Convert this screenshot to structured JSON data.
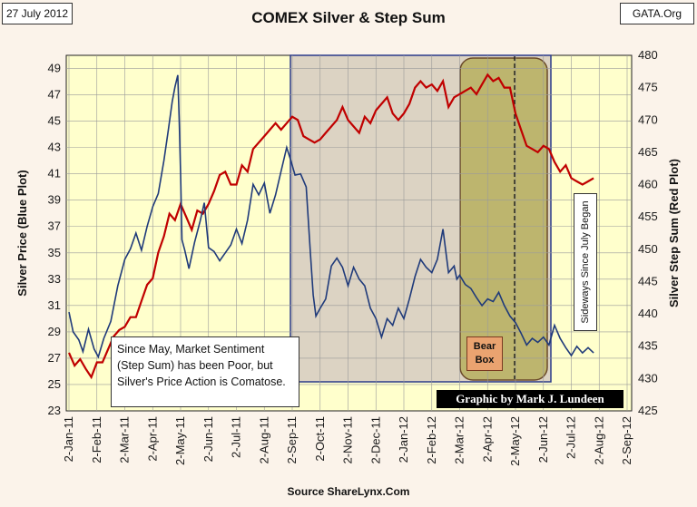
{
  "chart_data": {
    "type": "line",
    "title": "COMEX Silver & Step Sum",
    "date_label": "27 July 2012",
    "source_label": "GATA.Org",
    "footer": "Source ShareLynx.Com",
    "credit": "Graphic by Mark J. Lundeen",
    "ylabel_left": "Silver Price (Blue Plot)",
    "ylabel_right": "Silver Step Sum (Red Plot)",
    "ylim_left": [
      23,
      50
    ],
    "ylim_right": [
      425,
      480
    ],
    "yticks_left": [
      "49",
      "47",
      "45",
      "43",
      "41",
      "39",
      "37",
      "35",
      "33",
      "31",
      "29",
      "27",
      "25",
      "23"
    ],
    "yticks_right": [
      "480",
      "475",
      "470",
      "465",
      "460",
      "455",
      "450",
      "445",
      "440",
      "435",
      "430",
      "425"
    ],
    "xticks": [
      "2-Jan-11",
      "2-Feb-11",
      "2-Mar-11",
      "2-Apr-11",
      "2-May-11",
      "2-Jun-11",
      "2-Jul-11",
      "2-Aug-11",
      "2-Sep-11",
      "2-Oct-11",
      "2-Nov-11",
      "2-Dec-11",
      "2-Jan-12",
      "2-Feb-12",
      "2-Mar-12",
      "2-Apr-12",
      "2-May-12",
      "2-Jun-12",
      "2-Jul-12",
      "2-Aug-12",
      "2-Sep-12"
    ],
    "x_index_note": "x values are months since 2-Jan-11",
    "series": [
      {
        "name": "Silver Price (Blue Plot)",
        "axis": "left",
        "color": "#1f3a7a",
        "x": [
          0,
          0.15,
          0.35,
          0.5,
          0.7,
          0.9,
          1.05,
          1.25,
          1.5,
          1.75,
          2.0,
          2.2,
          2.4,
          2.6,
          2.8,
          3.0,
          3.2,
          3.4,
          3.55,
          3.7,
          3.8,
          3.9,
          3.95,
          4.0,
          4.05,
          4.15,
          4.3,
          4.5,
          4.7,
          4.85,
          5.0,
          5.2,
          5.4,
          5.6,
          5.8,
          6.0,
          6.2,
          6.4,
          6.6,
          6.8,
          7.0,
          7.2,
          7.4,
          7.6,
          7.8,
          7.95,
          8.1,
          8.3,
          8.5,
          8.65,
          8.75,
          8.85,
          9.0,
          9.2,
          9.4,
          9.6,
          9.8,
          10.0,
          10.2,
          10.4,
          10.6,
          10.8,
          11.0,
          11.2,
          11.4,
          11.6,
          11.8,
          12.0,
          12.2,
          12.4,
          12.6,
          12.8,
          13.0,
          13.2,
          13.4,
          13.6,
          13.8,
          13.9,
          14.0,
          14.2,
          14.4,
          14.6,
          14.8,
          15.0,
          15.2,
          15.4,
          15.6,
          15.8,
          16.0,
          16.2,
          16.4,
          16.6,
          16.8,
          17.0,
          17.2,
          17.4,
          17.6,
          17.8,
          18.0,
          18.2,
          18.4,
          18.6,
          18.8
        ],
        "values": [
          30.5,
          29.0,
          28.4,
          27.5,
          29.2,
          27.7,
          27.1,
          28.5,
          29.8,
          32.5,
          34.5,
          35.3,
          36.5,
          35.2,
          37.0,
          38.5,
          39.5,
          42.0,
          44.2,
          46.5,
          47.6,
          48.5,
          45.0,
          41.0,
          36.0,
          35.2,
          33.8,
          35.8,
          37.4,
          38.8,
          35.4,
          35.1,
          34.4,
          35.0,
          35.6,
          36.8,
          35.7,
          37.5,
          40.2,
          39.4,
          40.3,
          38.0,
          39.4,
          41.2,
          43.0,
          42.0,
          40.9,
          41.0,
          40.0,
          35.0,
          31.8,
          30.2,
          30.8,
          31.5,
          34.0,
          34.6,
          33.9,
          32.5,
          33.9,
          33.0,
          32.5,
          30.8,
          30.0,
          28.6,
          30.0,
          29.5,
          30.8,
          30.0,
          31.5,
          33.2,
          34.5,
          33.9,
          33.5,
          34.5,
          36.8,
          33.5,
          34.0,
          33.0,
          33.3,
          32.6,
          32.3,
          31.6,
          31.0,
          31.5,
          31.3,
          32.0,
          31.0,
          30.2,
          29.7,
          28.9,
          28.0,
          28.5,
          28.2,
          28.6,
          28.0,
          29.5,
          28.5,
          27.8,
          27.2,
          27.9,
          27.4,
          27.8,
          27.4
        ]
      },
      {
        "name": "Silver Step Sum (Red Plot)",
        "axis": "right",
        "color": "#c00000",
        "x": [
          0,
          0.2,
          0.4,
          0.6,
          0.8,
          1.0,
          1.2,
          1.4,
          1.6,
          1.8,
          2.0,
          2.2,
          2.4,
          2.6,
          2.8,
          3.0,
          3.2,
          3.4,
          3.6,
          3.8,
          4.0,
          4.2,
          4.4,
          4.6,
          4.8,
          5.0,
          5.2,
          5.4,
          5.6,
          5.8,
          6.0,
          6.2,
          6.4,
          6.6,
          6.8,
          7.0,
          7.2,
          7.4,
          7.6,
          7.8,
          8.0,
          8.2,
          8.4,
          8.6,
          8.8,
          9.0,
          9.2,
          9.4,
          9.6,
          9.8,
          10.0,
          10.2,
          10.4,
          10.6,
          10.8,
          11.0,
          11.2,
          11.4,
          11.6,
          11.8,
          12.0,
          12.2,
          12.4,
          12.6,
          12.8,
          13.0,
          13.2,
          13.4,
          13.6,
          13.8,
          14.0,
          14.2,
          14.4,
          14.6,
          14.8,
          15.0,
          15.2,
          15.4,
          15.6,
          15.8,
          16.0,
          16.2,
          16.4,
          16.6,
          16.8,
          17.0,
          17.2,
          17.4,
          17.6,
          17.8,
          18.0,
          18.2,
          18.4,
          18.6,
          18.8
        ],
        "values": [
          434,
          432,
          433,
          431.5,
          430.2,
          432.5,
          432.5,
          434.5,
          436.5,
          437.5,
          438.0,
          439.5,
          439.5,
          442.0,
          444.5,
          445.5,
          449.5,
          452.0,
          455.5,
          454.5,
          457.0,
          455.0,
          453.0,
          456.0,
          455.5,
          457.0,
          459.0,
          461.5,
          462.0,
          460.0,
          460.0,
          463.0,
          462.0,
          465.5,
          466.5,
          467.5,
          468.5,
          469.5,
          468.5,
          469.5,
          470.5,
          470.0,
          467.5,
          467.0,
          466.5,
          467.0,
          468.0,
          469.0,
          470.0,
          472.0,
          470.0,
          469.0,
          468.0,
          470.5,
          469.5,
          471.5,
          472.5,
          473.5,
          471.0,
          470.0,
          471.0,
          472.5,
          475.0,
          476.0,
          475.0,
          475.5,
          474.5,
          476.0,
          472.0,
          473.5,
          474.0,
          474.5,
          475.0,
          474.0,
          475.5,
          477.0,
          476.0,
          476.5,
          475.0,
          475.0,
          471.0,
          468.5,
          466.0,
          465.5,
          465.0,
          466.0,
          465.5,
          463.5,
          462.0,
          463.0,
          461.0,
          460.5,
          460.0,
          460.5,
          461.0
        ]
      }
    ],
    "annotations": {
      "sentiment_note": "Since May, Market Sentiment (Step Sum) has been Poor, but Silver's Price Action is Comatose.",
      "bear_box_label": "Bear Box",
      "sideways_label": "Sideways Since July Began"
    },
    "region_colors": {
      "plot_background": "#ffffcc",
      "range_box": "#dcd3c3",
      "bear_box": "#bdb56e"
    }
  }
}
